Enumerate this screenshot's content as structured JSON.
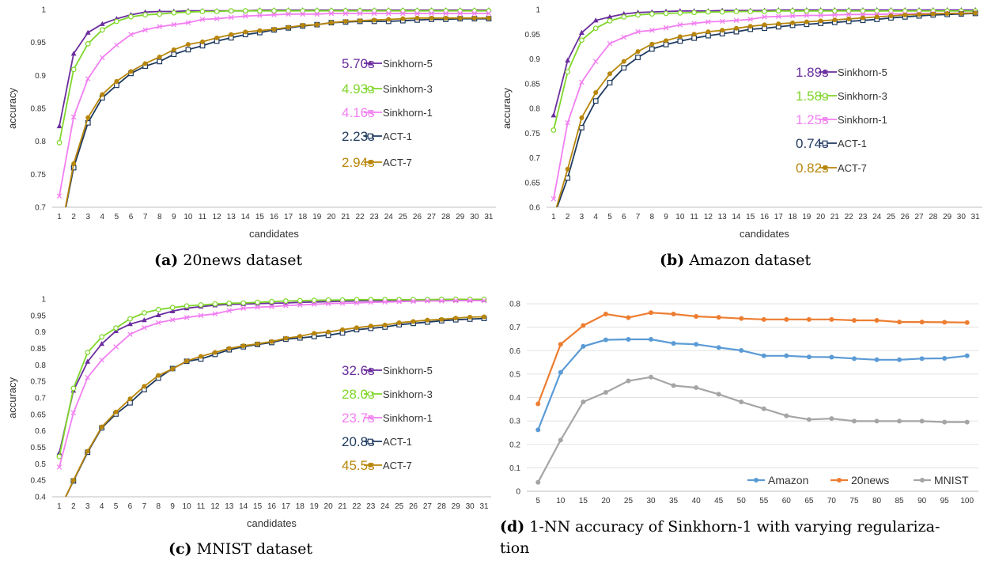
{
  "captions": [
    {
      "tag": "(a)",
      "text": "20news dataset"
    },
    {
      "tag": "(b)",
      "text": "Amazon dataset"
    },
    {
      "tag": "(c)",
      "text": "MNIST dataset"
    },
    {
      "tag": "(d)",
      "text": "1-NN accuracy of Sinkhorn-1 with varying regulariza-",
      "text2": "tion"
    }
  ],
  "colors": {
    "Sinkhorn-5": "#6a2d9e",
    "Sinkhorn-3": "#7fd62a",
    "Sinkhorn-1": "#f27ff2",
    "ACT-1": "#1f3a5f",
    "ACT-7": "#b8860b",
    "Amazon": "#5b9bd5",
    "20news": "#ed7d31",
    "MNIST": "#a5a5a5"
  },
  "chart_data": [
    {
      "type": "line",
      "xlabel": "candidates",
      "ylabel": "accuracy",
      "ylim": [
        0.7,
        1
      ],
      "yticks": [
        0.7,
        0.75,
        0.8,
        0.85,
        0.9,
        0.95,
        1
      ],
      "ytick_labels": [
        "0.7",
        "0.75",
        "0.8",
        "0.85",
        "0.9",
        "0.95",
        "1"
      ],
      "x": [
        1,
        2,
        3,
        4,
        5,
        6,
        7,
        8,
        9,
        10,
        11,
        12,
        13,
        14,
        15,
        16,
        17,
        18,
        19,
        20,
        21,
        22,
        23,
        24,
        25,
        26,
        27,
        28,
        29,
        30,
        31
      ],
      "legend_position": "bottom-right",
      "series": [
        {
          "name": "Sinkhorn-5",
          "time": "5.70s",
          "values": [
            0.823,
            0.933,
            0.965,
            0.978,
            0.986,
            0.992,
            0.996,
            0.997,
            0.997,
            0.998,
            0.998,
            0.998,
            0.998,
            0.998,
            0.999,
            0.999,
            0.999,
            0.999,
            0.999,
            0.999,
            0.999,
            0.999,
            0.999,
            0.999,
            0.999,
            0.999,
            0.999,
            0.999,
            0.999,
            0.999,
            0.999
          ]
        },
        {
          "name": "Sinkhorn-3",
          "time": "4.93s",
          "values": [
            0.798,
            0.909,
            0.948,
            0.969,
            0.982,
            0.989,
            0.992,
            0.993,
            0.995,
            0.996,
            0.997,
            0.997,
            0.998,
            0.998,
            0.998,
            0.998,
            0.998,
            0.998,
            0.998,
            0.998,
            0.998,
            0.998,
            0.998,
            0.998,
            0.998,
            0.998,
            0.998,
            0.998,
            0.998,
            0.998,
            0.998
          ]
        },
        {
          "name": "Sinkhorn-1",
          "time": "4.16s",
          "values": [
            0.717,
            0.837,
            0.895,
            0.927,
            0.946,
            0.962,
            0.969,
            0.974,
            0.977,
            0.98,
            0.985,
            0.986,
            0.988,
            0.99,
            0.991,
            0.992,
            0.993,
            0.993,
            0.993,
            0.994,
            0.994,
            0.994,
            0.994,
            0.994,
            0.994,
            0.994,
            0.994,
            0.994,
            0.994,
            0.994,
            0.994
          ]
        },
        {
          "name": "ACT-1",
          "time": "2.23s",
          "values": [
            0.65,
            0.76,
            0.828,
            0.866,
            0.885,
            0.903,
            0.914,
            0.921,
            0.932,
            0.939,
            0.945,
            0.952,
            0.957,
            0.962,
            0.965,
            0.969,
            0.972,
            0.975,
            0.977,
            0.98,
            0.981,
            0.982,
            0.982,
            0.982,
            0.983,
            0.984,
            0.985,
            0.985,
            0.986,
            0.986,
            0.986
          ]
        },
        {
          "name": "ACT-7",
          "time": "2.94s",
          "values": [
            0.65,
            0.766,
            0.836,
            0.871,
            0.891,
            0.906,
            0.918,
            0.928,
            0.939,
            0.947,
            0.951,
            0.957,
            0.962,
            0.966,
            0.968,
            0.97,
            0.973,
            0.976,
            0.977,
            0.98,
            0.982,
            0.983,
            0.984,
            0.985,
            0.986,
            0.987,
            0.987,
            0.987,
            0.987,
            0.987,
            0.987
          ]
        }
      ]
    },
    {
      "type": "line",
      "xlabel": "candidates",
      "ylabel": "accuracy",
      "ylim": [
        0.6,
        1
      ],
      "yticks": [
        0.6,
        0.65,
        0.7,
        0.75,
        0.8,
        0.85,
        0.9,
        0.95,
        1
      ],
      "ytick_labels": [
        "0.6",
        "0.65",
        "0.7",
        "0.75",
        "0.8",
        "0.85",
        "0.9",
        "0.95",
        "1"
      ],
      "x": [
        1,
        2,
        3,
        4,
        5,
        6,
        7,
        8,
        9,
        10,
        11,
        12,
        13,
        14,
        15,
        16,
        17,
        18,
        19,
        20,
        21,
        22,
        23,
        24,
        25,
        26,
        27,
        28,
        29,
        30,
        31
      ],
      "legend_position": "bottom-right",
      "series": [
        {
          "name": "Sinkhorn-5",
          "time": "1.89s",
          "values": [
            0.786,
            0.897,
            0.953,
            0.978,
            0.985,
            0.991,
            0.994,
            0.995,
            0.996,
            0.997,
            0.997,
            0.997,
            0.998,
            0.998,
            0.998,
            0.998,
            0.999,
            0.999,
            0.999,
            0.999,
            0.999,
            0.999,
            0.999,
            0.999,
            0.999,
            0.999,
            0.999,
            0.999,
            0.999,
            0.999,
            0.999
          ]
        },
        {
          "name": "Sinkhorn-3",
          "time": "1.58s",
          "values": [
            0.756,
            0.874,
            0.938,
            0.962,
            0.977,
            0.985,
            0.989,
            0.991,
            0.992,
            0.993,
            0.994,
            0.995,
            0.995,
            0.996,
            0.996,
            0.996,
            0.997,
            0.997,
            0.997,
            0.997,
            0.997,
            0.997,
            0.997,
            0.997,
            0.997,
            0.997,
            0.997,
            0.997,
            0.997,
            0.997,
            0.997
          ]
        },
        {
          "name": "Sinkhorn-1",
          "time": "1.25s",
          "values": [
            0.617,
            0.771,
            0.853,
            0.895,
            0.931,
            0.944,
            0.955,
            0.958,
            0.963,
            0.969,
            0.972,
            0.975,
            0.976,
            0.978,
            0.98,
            0.985,
            0.986,
            0.987,
            0.988,
            0.988,
            0.989,
            0.99,
            0.99,
            0.99,
            0.991,
            0.991,
            0.992,
            0.992,
            0.992,
            0.993,
            0.993
          ]
        },
        {
          "name": "ACT-1",
          "time": "0.74s",
          "values": [
            0.58,
            0.659,
            0.761,
            0.815,
            0.852,
            0.882,
            0.903,
            0.92,
            0.929,
            0.936,
            0.942,
            0.947,
            0.951,
            0.955,
            0.96,
            0.962,
            0.965,
            0.968,
            0.97,
            0.972,
            0.974,
            0.976,
            0.978,
            0.98,
            0.983,
            0.985,
            0.987,
            0.989,
            0.99,
            0.991,
            0.992
          ]
        },
        {
          "name": "ACT-7",
          "time": "0.82s",
          "values": [
            0.58,
            0.677,
            0.781,
            0.832,
            0.87,
            0.895,
            0.915,
            0.93,
            0.937,
            0.945,
            0.95,
            0.955,
            0.958,
            0.962,
            0.966,
            0.969,
            0.971,
            0.973,
            0.975,
            0.977,
            0.979,
            0.981,
            0.983,
            0.985,
            0.987,
            0.989,
            0.99,
            0.991,
            0.992,
            0.992,
            0.993
          ]
        }
      ]
    },
    {
      "type": "line",
      "xlabel": "candidates",
      "ylabel": "accuracy",
      "ylim": [
        0.4,
        1
      ],
      "yticks": [
        0.4,
        0.45,
        0.5,
        0.55,
        0.6,
        0.65,
        0.7,
        0.75,
        0.8,
        0.85,
        0.9,
        0.95,
        1
      ],
      "ytick_labels": [
        "0.4",
        "0.45",
        "0.5",
        "0.55",
        "0.6",
        "0.65",
        "0.7",
        "0.75",
        "0.8",
        "0.85",
        "0.9",
        "0.95",
        "1"
      ],
      "x": [
        1,
        2,
        3,
        4,
        5,
        6,
        7,
        8,
        9,
        10,
        11,
        12,
        13,
        14,
        15,
        16,
        17,
        18,
        19,
        20,
        21,
        22,
        23,
        24,
        25,
        26,
        27,
        28,
        29,
        30,
        31
      ],
      "legend_position": "bottom-right",
      "series": [
        {
          "name": "Sinkhorn-5",
          "time": "32.6s",
          "values": [
            0.533,
            0.722,
            0.81,
            0.864,
            0.903,
            0.924,
            0.936,
            0.951,
            0.963,
            0.972,
            0.977,
            0.981,
            0.984,
            0.985,
            0.986,
            0.987,
            0.988,
            0.99,
            0.991,
            0.992,
            0.993,
            0.994,
            0.995,
            0.995,
            0.996,
            0.996,
            0.997,
            0.997,
            0.997,
            0.997,
            0.997
          ]
        },
        {
          "name": "Sinkhorn-3",
          "time": "28.0s",
          "values": [
            0.522,
            0.729,
            0.838,
            0.885,
            0.912,
            0.94,
            0.958,
            0.968,
            0.974,
            0.979,
            0.982,
            0.985,
            0.987,
            0.988,
            0.99,
            0.992,
            0.994,
            0.995,
            0.996,
            0.997,
            0.997,
            0.998,
            0.998,
            0.998,
            0.998,
            0.998,
            0.998,
            0.999,
            0.999,
            0.999,
            0.999
          ]
        },
        {
          "name": "Sinkhorn-1",
          "time": "23.7s",
          "values": [
            0.49,
            0.655,
            0.762,
            0.815,
            0.855,
            0.893,
            0.913,
            0.928,
            0.937,
            0.944,
            0.95,
            0.955,
            0.965,
            0.972,
            0.975,
            0.977,
            0.98,
            0.982,
            0.984,
            0.986,
            0.987,
            0.988,
            0.99,
            0.991,
            0.992,
            0.993,
            0.994,
            0.994,
            0.995,
            0.995,
            0.995
          ]
        },
        {
          "name": "ACT-1",
          "time": "20.8s",
          "values": [
            0.36,
            0.448,
            0.535,
            0.609,
            0.651,
            0.685,
            0.725,
            0.76,
            0.789,
            0.811,
            0.818,
            0.832,
            0.846,
            0.855,
            0.862,
            0.868,
            0.878,
            0.882,
            0.886,
            0.89,
            0.897,
            0.907,
            0.911,
            0.915,
            0.922,
            0.926,
            0.93,
            0.934,
            0.937,
            0.939,
            0.941
          ]
        },
        {
          "name": "ACT-7",
          "time": "45.5s",
          "values": [
            0.36,
            0.45,
            0.538,
            0.612,
            0.657,
            0.697,
            0.735,
            0.768,
            0.788,
            0.812,
            0.826,
            0.838,
            0.85,
            0.858,
            0.864,
            0.871,
            0.881,
            0.887,
            0.896,
            0.9,
            0.907,
            0.913,
            0.918,
            0.921,
            0.928,
            0.932,
            0.936,
            0.938,
            0.942,
            0.945,
            0.946
          ]
        }
      ]
    },
    {
      "type": "line",
      "xlabel": "",
      "ylabel": "",
      "ylim": [
        0,
        0.8
      ],
      "yticks": [
        0,
        0.1,
        0.2,
        0.3,
        0.4,
        0.5,
        0.6,
        0.7,
        0.8
      ],
      "ytick_labels": [
        "0",
        "0.1",
        "0.2",
        "0.3",
        "0.4",
        "0.5",
        "0.6",
        "0.7",
        "0.8"
      ],
      "x": [
        5,
        10,
        15,
        20,
        25,
        30,
        35,
        40,
        45,
        50,
        55,
        60,
        65,
        70,
        75,
        80,
        85,
        90,
        95,
        100
      ],
      "legend_position": "bottom-right",
      "series": [
        {
          "name": "Amazon",
          "values": [
            0.262,
            0.507,
            0.618,
            0.646,
            0.648,
            0.648,
            0.631,
            0.627,
            0.613,
            0.601,
            0.578,
            0.578,
            0.573,
            0.572,
            0.566,
            0.561,
            0.561,
            0.566,
            0.567,
            0.578
          ]
        },
        {
          "name": "20news",
          "values": [
            0.373,
            0.627,
            0.707,
            0.756,
            0.741,
            0.762,
            0.756,
            0.746,
            0.742,
            0.737,
            0.733,
            0.733,
            0.733,
            0.733,
            0.729,
            0.729,
            0.722,
            0.722,
            0.721,
            0.72
          ]
        },
        {
          "name": "MNIST",
          "values": [
            0.038,
            0.218,
            0.381,
            0.422,
            0.471,
            0.487,
            0.451,
            0.442,
            0.414,
            0.381,
            0.352,
            0.322,
            0.306,
            0.31,
            0.299,
            0.299,
            0.299,
            0.299,
            0.295,
            0.295
          ]
        }
      ]
    }
  ]
}
